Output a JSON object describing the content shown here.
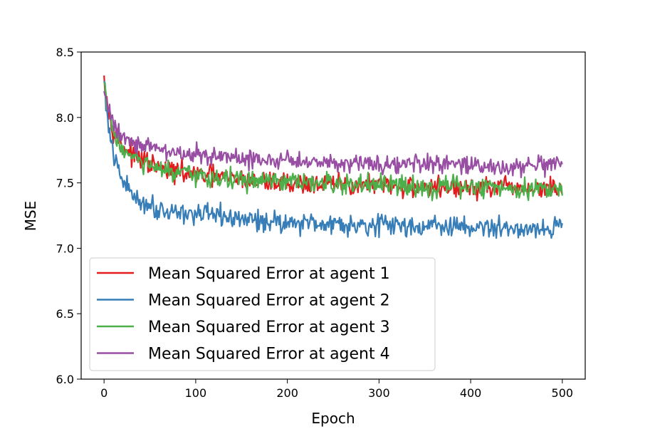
{
  "chart_data": {
    "type": "line",
    "title": "",
    "xlabel": "Epoch",
    "ylabel": "MSE",
    "xlim": [
      -25,
      525
    ],
    "ylim": [
      6.0,
      8.5
    ],
    "xticks": [
      0,
      100,
      200,
      300,
      400,
      500
    ],
    "yticks": [
      6.0,
      6.5,
      7.0,
      7.5,
      8.0,
      8.5
    ],
    "xtick_labels": [
      "0",
      "100",
      "200",
      "300",
      "400",
      "500"
    ],
    "ytick_labels": [
      "6.0",
      "6.5",
      "7.0",
      "7.5",
      "8.0",
      "8.5"
    ],
    "grid": false,
    "legend": {
      "position": "lower-left"
    },
    "x": [
      0,
      5,
      10,
      15,
      20,
      30,
      40,
      50,
      60,
      80,
      100,
      120,
      150,
      200,
      250,
      300,
      350,
      400,
      450,
      500
    ],
    "series": [
      {
        "name": "Mean Squared Error at agent 1",
        "color": "#e41a1c",
        "noise": 0.05,
        "values": [
          8.32,
          8.05,
          7.92,
          7.85,
          7.78,
          7.72,
          7.68,
          7.64,
          7.61,
          7.58,
          7.56,
          7.55,
          7.52,
          7.5,
          7.49,
          7.48,
          7.47,
          7.46,
          7.46,
          7.45
        ]
      },
      {
        "name": "Mean Squared Error at agent 2",
        "color": "#377eb8",
        "noise": 0.05,
        "values": [
          8.28,
          7.9,
          7.72,
          7.6,
          7.52,
          7.42,
          7.36,
          7.33,
          7.3,
          7.28,
          7.26,
          7.25,
          7.22,
          7.2,
          7.19,
          7.18,
          7.17,
          7.16,
          7.15,
          7.16
        ]
      },
      {
        "name": "Mean Squared Error at agent 3",
        "color": "#4daf4a",
        "noise": 0.05,
        "values": [
          8.27,
          8.02,
          7.9,
          7.82,
          7.76,
          7.7,
          7.66,
          7.62,
          7.6,
          7.57,
          7.55,
          7.54,
          7.52,
          7.5,
          7.49,
          7.48,
          7.47,
          7.47,
          7.46,
          7.46
        ]
      },
      {
        "name": "Mean Squared Error at agent 4",
        "color": "#984ea3",
        "noise": 0.045,
        "values": [
          8.2,
          8.05,
          7.97,
          7.9,
          7.86,
          7.82,
          7.8,
          7.77,
          7.75,
          7.73,
          7.72,
          7.7,
          7.68,
          7.67,
          7.66,
          7.65,
          7.64,
          7.63,
          7.62,
          7.63
        ]
      }
    ]
  }
}
